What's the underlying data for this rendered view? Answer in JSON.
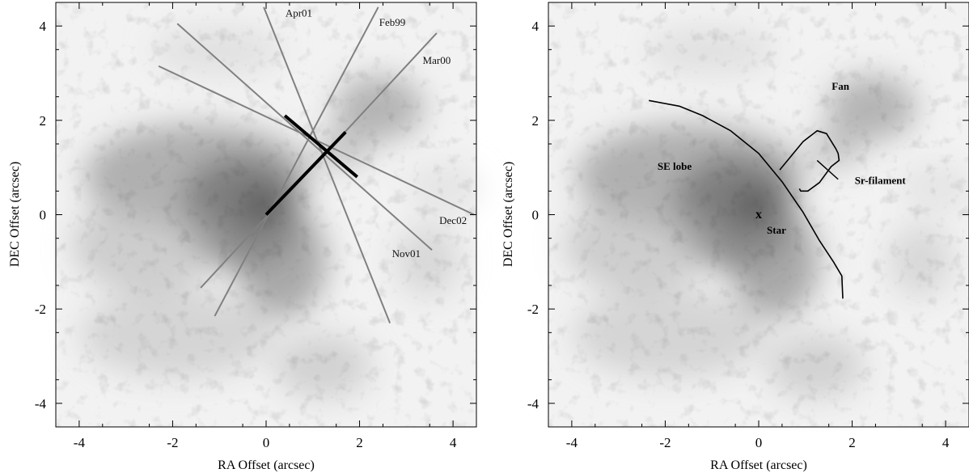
{
  "panels": [
    {
      "id": "left",
      "xlabel": "RA Offset (arcsec)",
      "ylabel": "DEC Offset (arcsec)",
      "xticks": [
        -4,
        -2,
        0,
        2,
        4
      ],
      "yticks": [
        -4,
        -2,
        0,
        2,
        4
      ],
      "xlim": [
        -4.5,
        4.5
      ],
      "ylim": [
        -4.5,
        4.5
      ],
      "slits": [
        {
          "label": "Apr01",
          "from": [
            -0.05,
            4.4
          ],
          "to": [
            2.65,
            -2.3
          ],
          "label_at": [
            0.7,
            4.2
          ]
        },
        {
          "label": "Feb99",
          "from": [
            -1.1,
            -2.15
          ],
          "to": [
            2.4,
            4.4
          ],
          "label_at": [
            2.7,
            4.0
          ]
        },
        {
          "label": "Mar00",
          "from": [
            -1.4,
            -1.55
          ],
          "to": [
            3.65,
            3.85
          ],
          "label_at": [
            3.65,
            3.2
          ]
        },
        {
          "label": "Dec02",
          "from": [
            -2.3,
            3.15
          ],
          "to": [
            4.45,
            0.0
          ],
          "label_at": [
            4.0,
            -0.2
          ]
        },
        {
          "label": "Nov01",
          "from": [
            -1.9,
            4.05
          ],
          "to": [
            3.55,
            -0.75
          ],
          "label_at": [
            3.0,
            -0.9
          ]
        }
      ],
      "thick_segments": [
        {
          "from": [
            0.0,
            0.0
          ],
          "to": [
            1.7,
            1.75
          ]
        },
        {
          "from": [
            0.4,
            2.1
          ],
          "to": [
            1.95,
            0.8
          ]
        }
      ]
    },
    {
      "id": "right",
      "xlabel": "RA Offset (arcsec)",
      "ylabel": "DEC Offset (arcsec)",
      "xticks": [
        -4,
        -2,
        0,
        2,
        4
      ],
      "yticks": [
        -4,
        -2,
        0,
        2,
        4
      ],
      "xlim": [
        -4.5,
        4.5
      ],
      "ylim": [
        -4.5,
        4.5
      ],
      "labels": [
        {
          "text": "Fan",
          "at": [
            1.75,
            2.65
          ]
        },
        {
          "text": "SE lobe",
          "at": [
            -1.8,
            0.95
          ]
        },
        {
          "text": "Sr-filament",
          "at": [
            2.6,
            0.65
          ]
        },
        {
          "text": "Star",
          "at": [
            0.38,
            -0.4
          ]
        },
        {
          "text": "x",
          "at": [
            0.0,
            -0.08
          ]
        }
      ],
      "arc": [
        [
          -2.35,
          2.42
        ],
        [
          -1.7,
          2.3
        ],
        [
          -1.2,
          2.1
        ],
        [
          -0.6,
          1.78
        ],
        [
          0.0,
          1.3
        ],
        [
          0.5,
          0.7
        ],
        [
          0.95,
          0.05
        ],
        [
          1.3,
          -0.55
        ],
        [
          1.6,
          -1.0
        ],
        [
          1.78,
          -1.3
        ],
        [
          1.8,
          -1.78
        ]
      ],
      "filament_box": [
        [
          0.45,
          0.95
        ],
        [
          0.95,
          1.55
        ],
        [
          1.25,
          1.78
        ],
        [
          1.45,
          1.72
        ],
        [
          1.65,
          1.4
        ],
        [
          1.7,
          1.3
        ],
        [
          1.72,
          1.15
        ],
        [
          1.55,
          1.02
        ],
        [
          1.3,
          0.68
        ],
        [
          1.05,
          0.5
        ],
        [
          0.9,
          0.5
        ],
        [
          0.87,
          0.55
        ]
      ],
      "filament_pointer": {
        "from": [
          1.25,
          1.15
        ],
        "to": [
          1.7,
          0.75
        ]
      }
    }
  ]
}
